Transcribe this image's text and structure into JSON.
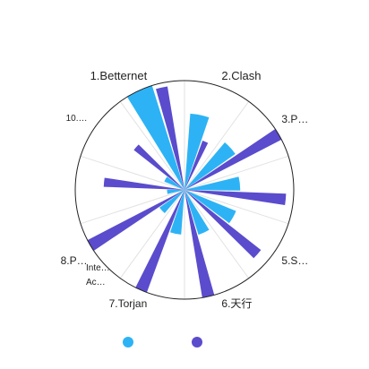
{
  "chart_data": {
    "type": "polar-bar",
    "categories": [
      "1.Betternet",
      "2.Clash",
      "3.P…",
      null,
      "5.S…",
      "6.天行",
      "7.Torjan",
      "8.P…",
      "Inte…\nAc…",
      "10.…"
    ],
    "series": [
      {
        "color": "#2db3f5",
        "values": [
          100,
          70,
          57,
          51,
          51,
          43,
          41,
          28,
          16,
          20
        ]
      },
      {
        "color": "#5a4ccc",
        "values": [
          96,
          48,
          100,
          93,
          89,
          100,
          100,
          100,
          74,
          59
        ]
      }
    ],
    "ylim": [
      0,
      100
    ],
    "grid": true
  }
}
